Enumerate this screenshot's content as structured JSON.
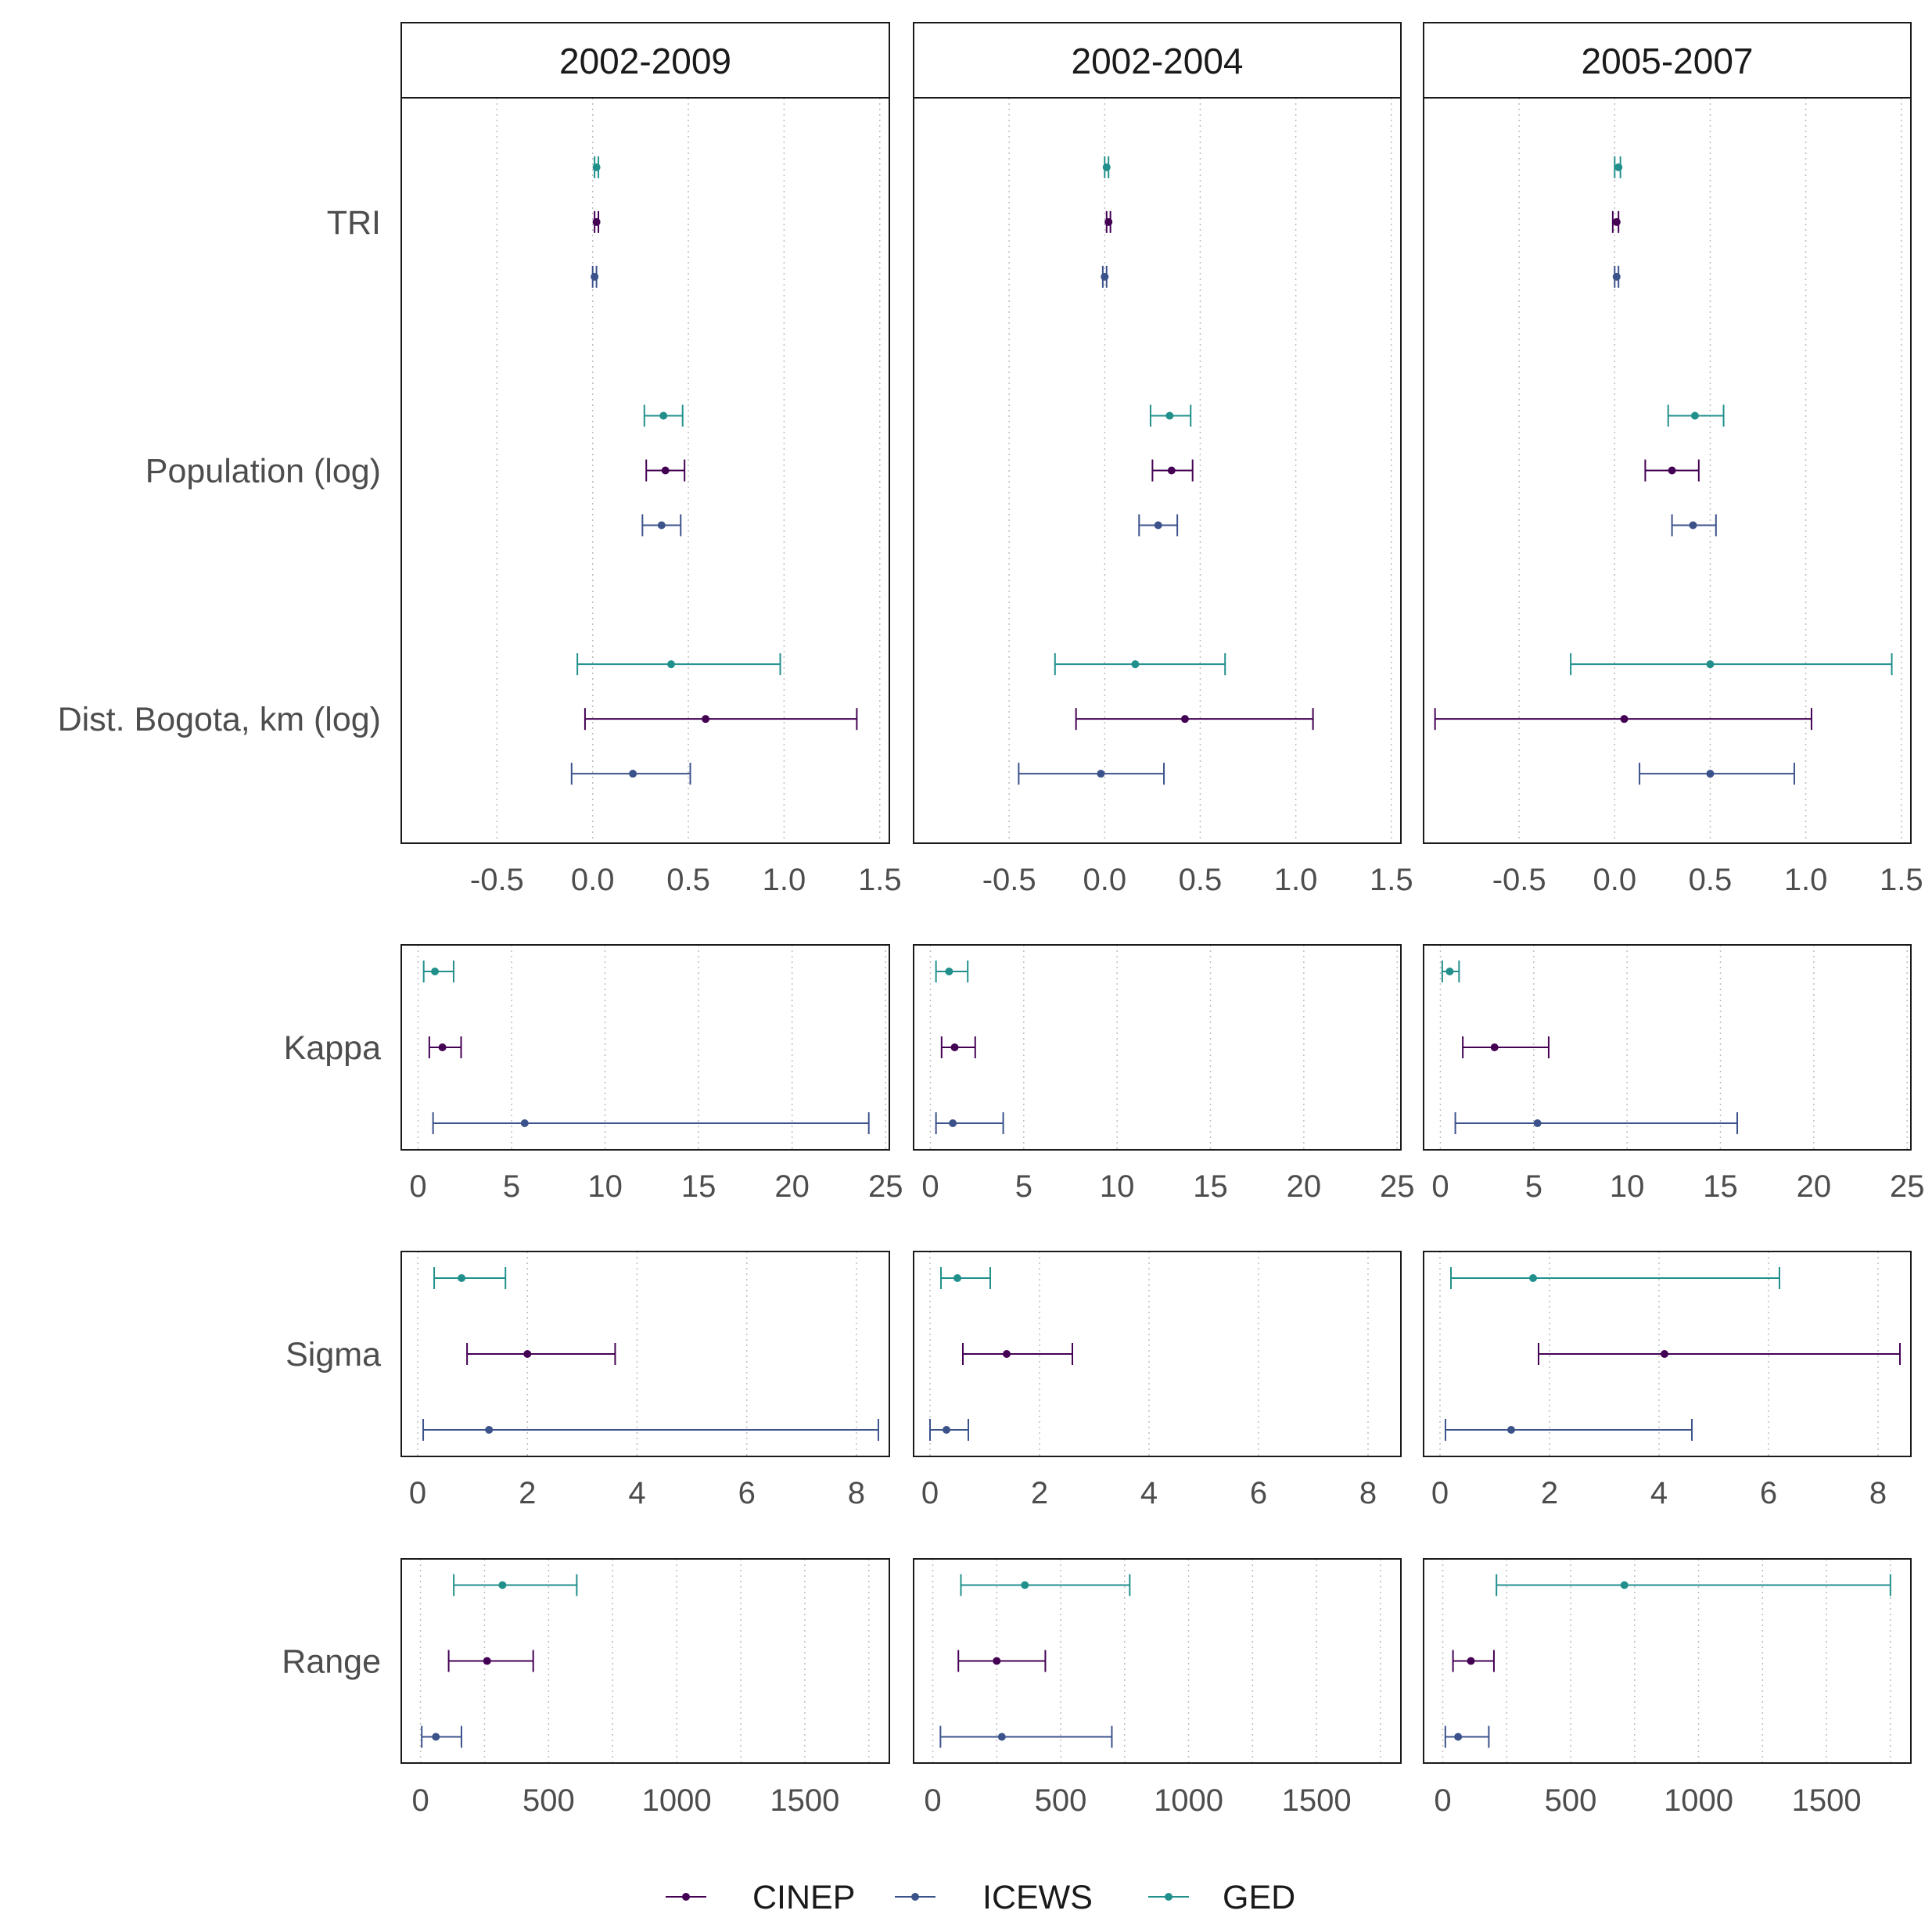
{
  "chart_data": {
    "type": "errorbar",
    "columns": [
      "2002-2009",
      "2002-2004",
      "2005-2007"
    ],
    "legend": {
      "position": "bottom",
      "entries": [
        {
          "name": "CINEP",
          "color": "#440154"
        },
        {
          "name": "ICEWS",
          "color": "#3B528B"
        },
        {
          "name": "GED",
          "color": "#21908C"
        }
      ]
    },
    "grid": {
      "vertical_minor_dotted": true
    },
    "row_groups": [
      {
        "id": "coefficients",
        "xlim": [
          -1.0,
          1.55
        ],
        "ticks": [
          -0.5,
          0.0,
          0.5,
          1.0,
          1.5
        ],
        "tick_labels": [
          "-0.5",
          "0.0",
          "0.5",
          "1.0",
          "1.5"
        ],
        "grid_lines": [
          -0.5,
          0.0,
          0.5,
          1.0,
          1.5
        ],
        "variables": [
          {
            "label": "TRI",
            "estimates": [
              [
                {
                  "series": "GED",
                  "est": 0.02,
                  "lo": 0.01,
                  "hi": 0.03
                },
                {
                  "series": "CINEP",
                  "est": 0.02,
                  "lo": 0.01,
                  "hi": 0.03
                },
                {
                  "series": "ICEWS",
                  "est": 0.01,
                  "lo": 0.0,
                  "hi": 0.02
                }
              ],
              [
                {
                  "series": "GED",
                  "est": 0.01,
                  "lo": 0.0,
                  "hi": 0.02
                },
                {
                  "series": "CINEP",
                  "est": 0.02,
                  "lo": 0.01,
                  "hi": 0.03
                },
                {
                  "series": "ICEWS",
                  "est": 0.0,
                  "lo": -0.01,
                  "hi": 0.01
                }
              ],
              [
                {
                  "series": "GED",
                  "est": 0.02,
                  "lo": 0.0,
                  "hi": 0.03
                },
                {
                  "series": "CINEP",
                  "est": 0.01,
                  "lo": -0.01,
                  "hi": 0.02
                },
                {
                  "series": "ICEWS",
                  "est": 0.01,
                  "lo": 0.0,
                  "hi": 0.02
                }
              ]
            ]
          },
          {
            "label": "Population (log)",
            "estimates": [
              [
                {
                  "series": "GED",
                  "est": 0.37,
                  "lo": 0.27,
                  "hi": 0.47
                },
                {
                  "series": "CINEP",
                  "est": 0.38,
                  "lo": 0.28,
                  "hi": 0.48
                },
                {
                  "series": "ICEWS",
                  "est": 0.36,
                  "lo": 0.26,
                  "hi": 0.46
                }
              ],
              [
                {
                  "series": "GED",
                  "est": 0.34,
                  "lo": 0.24,
                  "hi": 0.45
                },
                {
                  "series": "CINEP",
                  "est": 0.35,
                  "lo": 0.25,
                  "hi": 0.46
                },
                {
                  "series": "ICEWS",
                  "est": 0.28,
                  "lo": 0.18,
                  "hi": 0.38
                }
              ],
              [
                {
                  "series": "GED",
                  "est": 0.42,
                  "lo": 0.28,
                  "hi": 0.57
                },
                {
                  "series": "CINEP",
                  "est": 0.3,
                  "lo": 0.16,
                  "hi": 0.44
                },
                {
                  "series": "ICEWS",
                  "est": 0.41,
                  "lo": 0.3,
                  "hi": 0.53
                }
              ]
            ]
          },
          {
            "label": "Dist. Bogota, km (log)",
            "estimates": [
              [
                {
                  "series": "GED",
                  "est": 0.41,
                  "lo": -0.08,
                  "hi": 0.98
                },
                {
                  "series": "CINEP",
                  "est": 0.59,
                  "lo": -0.04,
                  "hi": 1.38
                },
                {
                  "series": "ICEWS",
                  "est": 0.21,
                  "lo": -0.11,
                  "hi": 0.51
                }
              ],
              [
                {
                  "series": "GED",
                  "est": 0.16,
                  "lo": -0.26,
                  "hi": 0.63
                },
                {
                  "series": "CINEP",
                  "est": 0.42,
                  "lo": -0.15,
                  "hi": 1.09
                },
                {
                  "series": "ICEWS",
                  "est": -0.02,
                  "lo": -0.45,
                  "hi": 0.31
                }
              ],
              [
                {
                  "series": "GED",
                  "est": 0.5,
                  "lo": -0.23,
                  "hi": 1.45
                },
                {
                  "series": "CINEP",
                  "est": 0.05,
                  "lo": -0.94,
                  "hi": 1.03
                },
                {
                  "series": "ICEWS",
                  "est": 0.5,
                  "lo": 0.13,
                  "hi": 0.94
                }
              ]
            ]
          }
        ]
      },
      {
        "id": "kappa",
        "xlim": [
          -0.9,
          25.2
        ],
        "ticks": [
          0,
          5,
          10,
          15,
          20,
          25
        ],
        "tick_labels": [
          "0",
          "5",
          "10",
          "15",
          "20",
          "25"
        ],
        "grid_lines": [
          0,
          5,
          10,
          15,
          20,
          25
        ],
        "variables": [
          {
            "label": "Kappa",
            "estimates": [
              [
                {
                  "series": "GED",
                  "est": 0.9,
                  "lo": 0.3,
                  "hi": 1.9
                },
                {
                  "series": "CINEP",
                  "est": 1.3,
                  "lo": 0.6,
                  "hi": 2.3
                },
                {
                  "series": "ICEWS",
                  "est": 5.7,
                  "lo": 0.8,
                  "hi": 24.1
                }
              ],
              [
                {
                  "series": "GED",
                  "est": 1.0,
                  "lo": 0.3,
                  "hi": 2.0
                },
                {
                  "series": "CINEP",
                  "est": 1.3,
                  "lo": 0.6,
                  "hi": 2.4
                },
                {
                  "series": "ICEWS",
                  "est": 1.2,
                  "lo": 0.3,
                  "hi": 3.9
                }
              ],
              [
                {
                  "series": "GED",
                  "est": 0.5,
                  "lo": 0.1,
                  "hi": 1.0
                },
                {
                  "series": "CINEP",
                  "est": 2.9,
                  "lo": 1.2,
                  "hi": 5.8
                },
                {
                  "series": "ICEWS",
                  "est": 5.2,
                  "lo": 0.8,
                  "hi": 15.9
                }
              ]
            ]
          }
        ]
      },
      {
        "id": "sigma",
        "xlim": [
          -0.3,
          8.6
        ],
        "ticks": [
          0,
          2,
          4,
          6,
          8
        ],
        "tick_labels": [
          "0",
          "2",
          "4",
          "6",
          "8"
        ],
        "grid_lines": [
          0,
          2,
          4,
          6,
          8
        ],
        "variables": [
          {
            "label": "Sigma",
            "estimates": [
              [
                {
                  "series": "GED",
                  "est": 0.8,
                  "lo": 0.3,
                  "hi": 1.6
                },
                {
                  "series": "CINEP",
                  "est": 2.0,
                  "lo": 0.9,
                  "hi": 3.6
                },
                {
                  "series": "ICEWS",
                  "est": 1.3,
                  "lo": 0.1,
                  "hi": 8.4
                }
              ],
              [
                {
                  "series": "GED",
                  "est": 0.5,
                  "lo": 0.2,
                  "hi": 1.1
                },
                {
                  "series": "CINEP",
                  "est": 1.4,
                  "lo": 0.6,
                  "hi": 2.6
                },
                {
                  "series": "ICEWS",
                  "est": 0.3,
                  "lo": 0.0,
                  "hi": 0.7
                }
              ],
              [
                {
                  "series": "GED",
                  "est": 1.7,
                  "lo": 0.2,
                  "hi": 6.2
                },
                {
                  "series": "CINEP",
                  "est": 4.1,
                  "lo": 1.8,
                  "hi": 8.4
                },
                {
                  "series": "ICEWS",
                  "est": 1.3,
                  "lo": 0.1,
                  "hi": 4.6
                }
              ]
            ]
          }
        ]
      },
      {
        "id": "range",
        "xlim": [
          -75,
          1830
        ],
        "ticks": [
          0,
          500,
          1000,
          1500
        ],
        "tick_labels": [
          "0",
          "500",
          "1000",
          "1500"
        ],
        "grid_lines": [
          0,
          250,
          500,
          750,
          1000,
          1250,
          1500,
          1750
        ],
        "variables": [
          {
            "label": "Range",
            "estimates": [
              [
                {
                  "series": "GED",
                  "est": 320,
                  "lo": 130,
                  "hi": 610
                },
                {
                  "series": "CINEP",
                  "est": 260,
                  "lo": 110,
                  "hi": 440
                },
                {
                  "series": "ICEWS",
                  "est": 60,
                  "lo": 5,
                  "hi": 160
                }
              ],
              [
                {
                  "series": "GED",
                  "est": 360,
                  "lo": 110,
                  "hi": 770
                },
                {
                  "series": "CINEP",
                  "est": 250,
                  "lo": 100,
                  "hi": 440
                },
                {
                  "series": "ICEWS",
                  "est": 270,
                  "lo": 30,
                  "hi": 700
                }
              ],
              [
                {
                  "series": "GED",
                  "est": 710,
                  "lo": 210,
                  "hi": 1750
                },
                {
                  "series": "CINEP",
                  "est": 110,
                  "lo": 40,
                  "hi": 200
                },
                {
                  "series": "ICEWS",
                  "est": 60,
                  "lo": 10,
                  "hi": 180
                }
              ]
            ]
          }
        ]
      }
    ]
  }
}
